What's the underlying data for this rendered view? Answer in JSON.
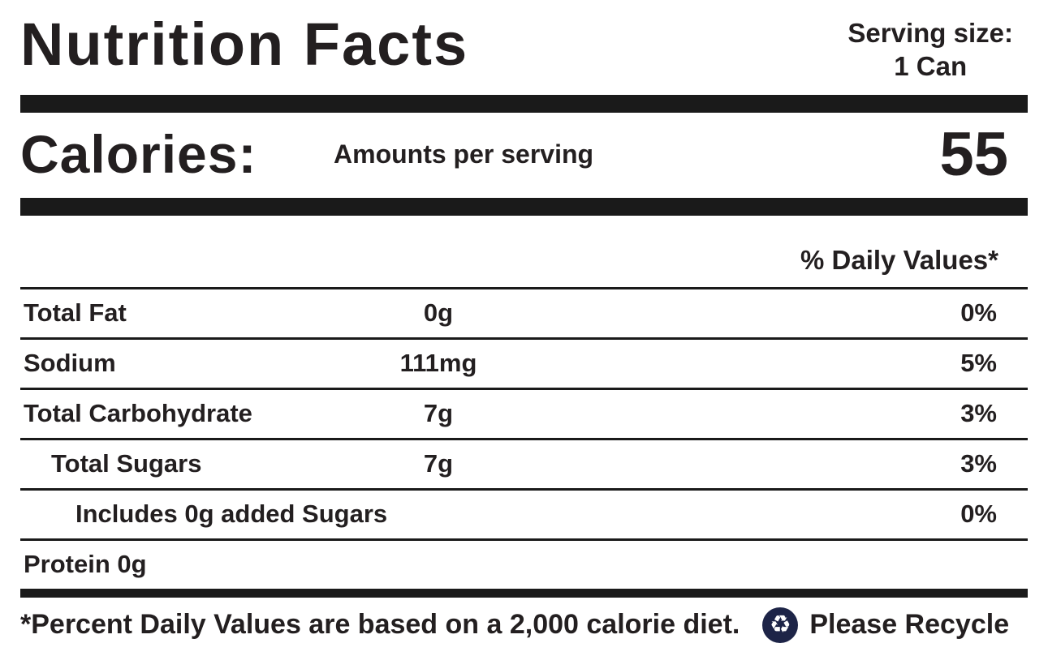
{
  "label": {
    "title": "Nutrition Facts",
    "serving": {
      "label": "Serving size:",
      "value": "1 Can"
    },
    "calories": {
      "label": "Calories:",
      "amounts_per_serving_label": "Amounts per serving",
      "value": "55"
    },
    "daily_values_header": "% Daily Values*",
    "rows": [
      {
        "name": "Total Fat",
        "amount": "0g",
        "dv": "0%",
        "indent": 0
      },
      {
        "name": "Sodium",
        "amount": "111mg",
        "dv": "5%",
        "indent": 0
      },
      {
        "name": "Total Carbohydrate",
        "amount": "7g",
        "dv": "3%",
        "indent": 0
      },
      {
        "name": "Total Sugars",
        "amount": "7g",
        "dv": "3%",
        "indent": 1
      },
      {
        "name": "Includes 0g added Sugars",
        "amount": "",
        "dv": "0%",
        "indent": 2
      },
      {
        "name": "Protein 0g",
        "amount": "",
        "dv": "",
        "indent": 0
      }
    ],
    "footnote": "*Percent Daily Values are based on a 2,000 calorie diet.",
    "recycle": {
      "icon_glyph": "♻",
      "label": "Please Recycle"
    },
    "colors": {
      "text": "#231f20",
      "bars": "#1a1a1a",
      "recycle_accent": "#1d2447"
    }
  }
}
